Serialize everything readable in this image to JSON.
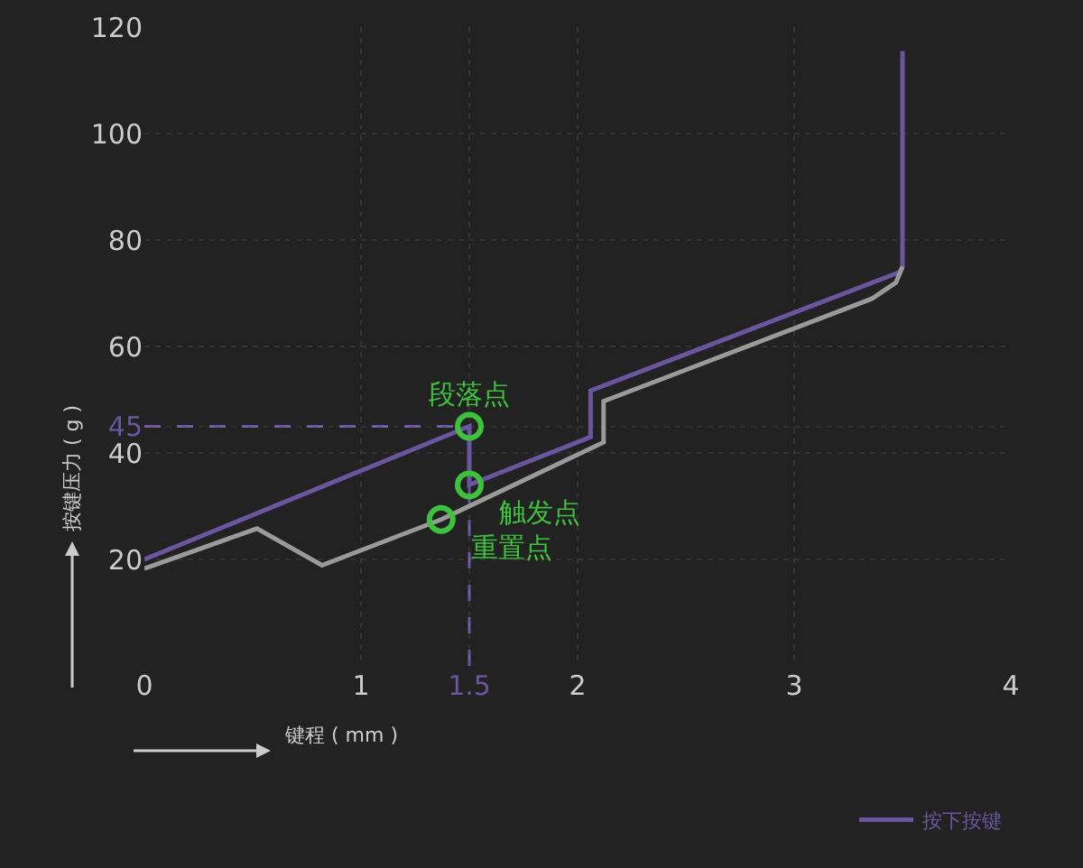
{
  "chart_data": {
    "type": "line",
    "xlabel": "键程 ( mm )",
    "ylabel": "按键压力 ( g )",
    "xlim": [
      0,
      4
    ],
    "xticks": [
      0,
      1,
      1.5,
      2,
      3,
      4
    ],
    "ylim": [
      0,
      120
    ],
    "yticks": [
      20,
      40,
      45,
      60,
      80,
      100,
      120
    ],
    "series": [
      {
        "name": "按下按键",
        "color": "#6a559e",
        "x": [
          0,
          1.5,
          1.5,
          2.06,
          2.06,
          3.49,
          3.5,
          3.5
        ],
        "values": [
          20,
          45,
          34,
          43,
          51.7,
          74,
          75,
          115.5
        ]
      },
      {
        "color": "#9a9a9a",
        "x": [
          0,
          0.52,
          0.82,
          1.37,
          2.12,
          2.12,
          3.36,
          3.47,
          3.5
        ],
        "values": [
          18.3,
          25.8,
          18.9,
          27.5,
          42,
          49.7,
          69,
          72,
          75
        ]
      },
      {
        "type": "scatter",
        "marker": "circle",
        "color": "#3ec23e",
        "x": [
          1.5,
          1.5,
          1.37
        ],
        "values": [
          45,
          34,
          27.5
        ],
        "value_labels": [
          "段落点",
          "触发点",
          "重置点"
        ]
      }
    ],
    "ref_lines": [
      {
        "axis": "y",
        "value": 45,
        "color": "#6a559e",
        "line_style": "dashed"
      },
      {
        "axis": "x",
        "value": 1.5,
        "color": "#6a559e",
        "line_style": "dashed"
      }
    ],
    "grid": true,
    "legend": "bottom right"
  }
}
